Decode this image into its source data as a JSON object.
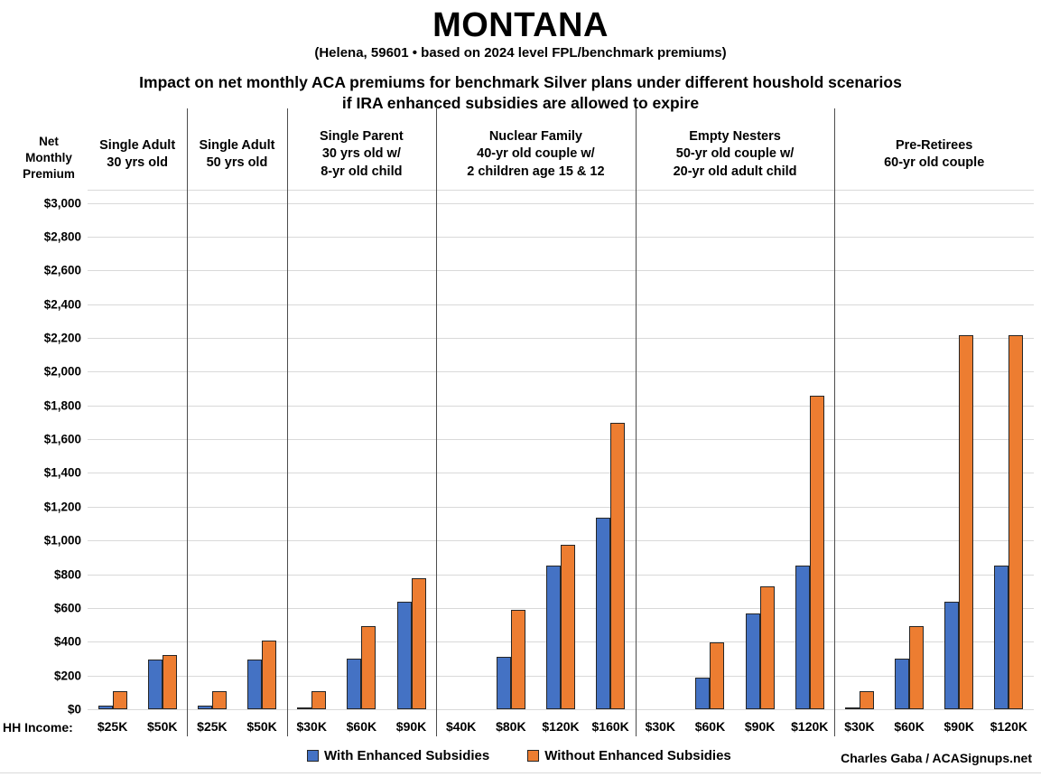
{
  "title": "MONTANA",
  "subtitle": "(Helena, 59601 • based on 2024 level FPL/benchmark premiums)",
  "heading_line1": "Impact on net monthly ACA premiums for benchmark Silver plans under different houshold scenarios",
  "heading_line2": "if IRA enhanced subsidies are allowed to expire",
  "y_axis_label": "Net\nMonthly\nPremium",
  "hh_income_label": "HH Income:",
  "credit": "Charles Gaba / ACASignups.net",
  "legend": {
    "with_label": "With Enhanced Subsidies",
    "without_label": "Without Enhanced Subsidies"
  },
  "colors": {
    "with_subsidies": "#4472C4",
    "without_subsidies": "#ED7D31",
    "bar_border": "#262626",
    "gridline": "#d9d9d9",
    "divider": "#4d4d4d",
    "text": "#000000"
  },
  "chart_data": {
    "type": "bar",
    "title": "Impact on net monthly ACA premiums for benchmark Silver plans under different houshold scenarios if IRA enhanced subsidies are allowed to expire",
    "ylabel": "Net Monthly Premium",
    "xlabel": "HH Income",
    "ylim": [
      0,
      3000
    ],
    "ytick_step": 200,
    "grid": true,
    "legend_position": "bottom",
    "series_names": [
      "With Enhanced Subsidies",
      "Without Enhanced Subsidies"
    ],
    "panels": [
      {
        "header_lines": [
          "Single Adult",
          "30 yrs old"
        ],
        "categories": [
          "$25K",
          "$50K"
        ],
        "series": [
          {
            "name": "With Enhanced Subsidies",
            "values": [
              20,
              295
            ]
          },
          {
            "name": "Without Enhanced Subsidies",
            "values": [
              105,
              320
            ]
          }
        ]
      },
      {
        "header_lines": [
          "Single Adult",
          "50 yrs old"
        ],
        "categories": [
          "$25K",
          "$50K"
        ],
        "series": [
          {
            "name": "With Enhanced Subsidies",
            "values": [
              20,
              295
            ]
          },
          {
            "name": "Without Enhanced Subsidies",
            "values": [
              105,
              405
            ]
          }
        ]
      },
      {
        "header_lines": [
          "Single Parent",
          "30 yrs old w/",
          "8-yr old child"
        ],
        "categories": [
          "$30K",
          "$60K",
          "$90K"
        ],
        "series": [
          {
            "name": "With Enhanced Subsidies",
            "values": [
              5,
              300,
              637
            ]
          },
          {
            "name": "Without Enhanced Subsidies",
            "values": [
              105,
              490,
              775
            ]
          }
        ]
      },
      {
        "header_lines": [
          "Nuclear Family",
          "40-yr old couple w/",
          "2 children age 15 & 12"
        ],
        "categories": [
          "$40K",
          "$80K",
          "$120K",
          "$160K"
        ],
        "series": [
          {
            "name": "With Enhanced Subsidies",
            "values": [
              0,
              310,
              850,
              1133
            ]
          },
          {
            "name": "Without Enhanced Subsidies",
            "values": [
              0,
              590,
              975,
              1695
            ]
          }
        ]
      },
      {
        "header_lines": [
          "Empty Nesters",
          "50-yr old couple w/",
          "20-yr old adult child"
        ],
        "categories": [
          "$30K",
          "$60K",
          "$90K",
          "$120K"
        ],
        "series": [
          {
            "name": "With Enhanced Subsidies",
            "values": [
              0,
              185,
              565,
              850
            ]
          },
          {
            "name": "Without Enhanced Subsidies",
            "values": [
              0,
              395,
              730,
              1855
            ]
          }
        ]
      },
      {
        "header_lines": [
          "Pre-Retirees",
          "60-yr old couple"
        ],
        "categories": [
          "$30K",
          "$60K",
          "$90K",
          "$120K"
        ],
        "series": [
          {
            "name": "With Enhanced Subsidies",
            "values": [
              5,
              300,
              637,
              850
            ]
          },
          {
            "name": "Without Enhanced Subsidies",
            "values": [
              105,
              490,
              2215,
              2215
            ]
          }
        ]
      }
    ]
  }
}
